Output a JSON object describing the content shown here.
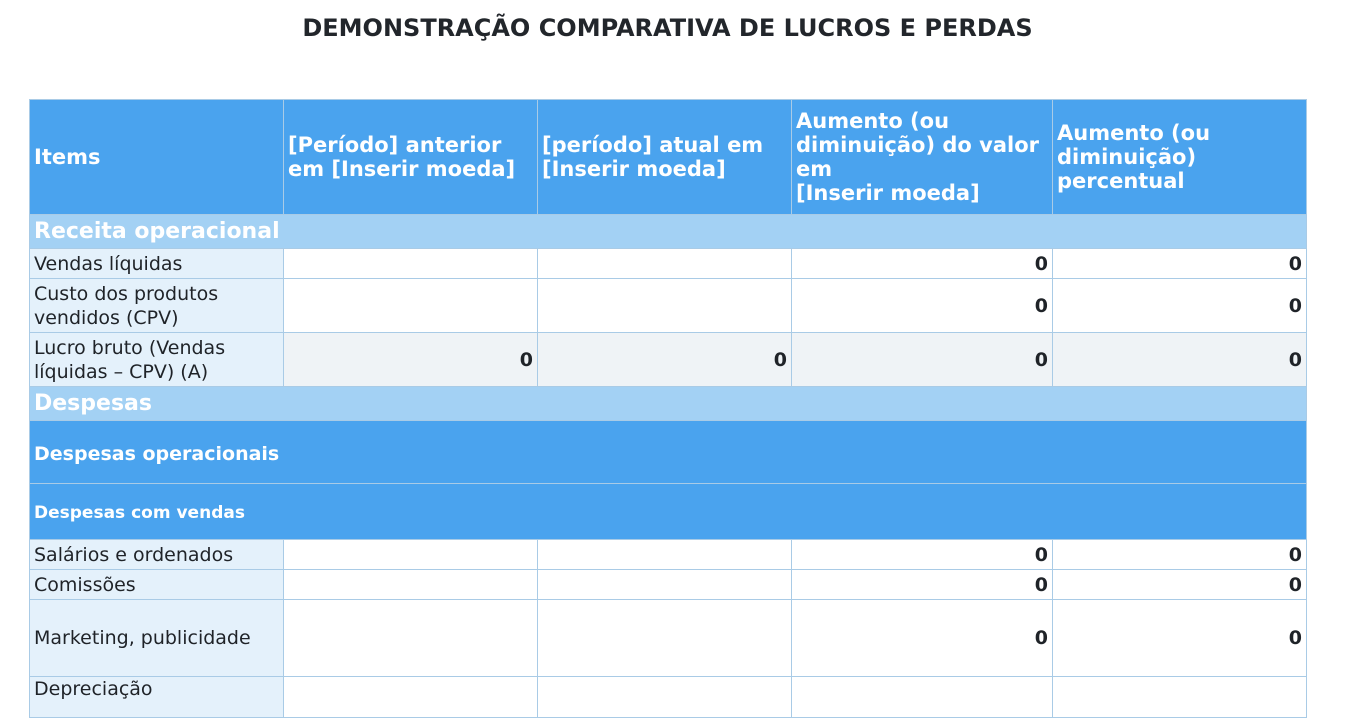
{
  "title": "DEMONSTRAÇÃO COMPARATIVA DE LUCROS E PERDAS",
  "columns": [
    "Items",
    "[Período] anterior em [Inserir moeda]",
    "[período] atual  em [Inserir moeda]",
    "Aumento (ou diminuição) do valor em\n[Inserir moeda]",
    "Aumento (ou diminuição) percentual"
  ],
  "sections": {
    "receita": "Receita operacional",
    "despesas": "Despesas",
    "despesas_operacionais": "Despesas operacionais",
    "despesas_vendas": "Despesas com vendas"
  },
  "rows": [
    {
      "label": "Vendas líquidas",
      "prev": "",
      "curr": "",
      "diff": "0",
      "pct": "0"
    },
    {
      "label": "Custo dos produtos vendidos (CPV)",
      "prev": "",
      "curr": "",
      "diff": "0",
      "pct": "0"
    },
    {
      "label": "Lucro bruto (Vendas líquidas – CPV) (A)",
      "prev": "0",
      "curr": "0",
      "diff": "0",
      "pct": "0"
    },
    {
      "label": "Salários e ordenados",
      "prev": "",
      "curr": "",
      "diff": "0",
      "pct": "0"
    },
    {
      "label": "Comissões",
      "prev": "",
      "curr": "",
      "diff": "0",
      "pct": "0"
    },
    {
      "label": "Marketing, publicidade",
      "prev": "",
      "curr": "",
      "diff": "0",
      "pct": "0"
    },
    {
      "label": "Depreciação",
      "prev": "",
      "curr": "",
      "diff": "",
      "pct": ""
    }
  ]
}
